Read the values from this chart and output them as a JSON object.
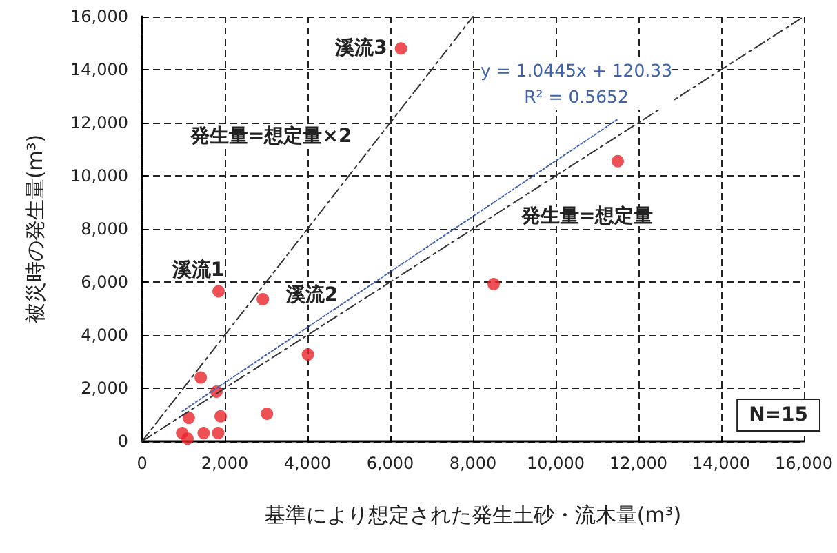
{
  "chart_data": {
    "type": "scatter",
    "xlabel": "基準により想定された発生土砂・流木量(m³)",
    "ylabel": "被災時の発生量(m³)",
    "xlim": [
      0,
      16000
    ],
    "xticks": [
      {
        "value": 0,
        "label": "0"
      },
      {
        "value": 2000,
        "label": "2,000"
      },
      {
        "value": 4000,
        "label": "4,000"
      },
      {
        "value": 6000,
        "label": "6,000"
      },
      {
        "value": 8000,
        "label": "8,000"
      },
      {
        "value": 10000,
        "label": "10,000"
      },
      {
        "value": 12000,
        "label": "12,000"
      },
      {
        "value": 14000,
        "label": "14,000"
      },
      {
        "value": 16000,
        "label": "16,000"
      }
    ],
    "ylim": [
      0,
      16000
    ],
    "yticks": [
      {
        "value": 0,
        "label": "0"
      },
      {
        "value": 2000,
        "label": "2,000"
      },
      {
        "value": 4000,
        "label": "4,000"
      },
      {
        "value": 6000,
        "label": "6,000"
      },
      {
        "value": 8000,
        "label": "8,000"
      },
      {
        "value": 10000,
        "label": "10,000"
      },
      {
        "value": 12000,
        "label": "12,000"
      },
      {
        "value": 14000,
        "label": "14,000"
      },
      {
        "value": 16000,
        "label": "16,000"
      }
    ],
    "grid": true,
    "legend": false,
    "series": [
      {
        "color": "#e8262b",
        "marker": "circle",
        "x": [
          1850,
          2920,
          1420,
          1800,
          4010,
          1130,
          1900,
          3020,
          970,
          1100,
          1490,
          1840,
          6260,
          11500,
          8500
        ],
        "values": [
          5650,
          5350,
          2400,
          1870,
          3270,
          880,
          940,
          1040,
          310,
          100,
          310,
          310,
          14800,
          10550,
          5920
        ]
      },
      {
        "type": "line",
        "color": "#333333",
        "marker": "none",
        "line_style": "dashed",
        "x": [
          0,
          16000
        ],
        "values": [
          0,
          16000
        ]
      },
      {
        "type": "line",
        "color": "#333333",
        "marker": "none",
        "line_style": "dashed",
        "x": [
          0,
          8000
        ],
        "values": [
          0,
          16000
        ]
      },
      {
        "type": "line",
        "name": "y = 1.0445x + 120.33\nR² = 0.5652",
        "color": "#3f62b0",
        "marker": "none",
        "line_style": "dotted",
        "x": [
          970,
          11500
        ],
        "values": [
          1130,
          12130
        ]
      }
    ],
    "annotations": [
      {
        "text": "溪流1",
        "x": 1360,
        "y": 6440
      },
      {
        "text": "溪流2",
        "x": 4110,
        "y": 5510
      },
      {
        "text": "溪流3",
        "x": 5300,
        "y": 14800
      },
      "発生量=想定量×2",
      "発生量=想定量",
      "N=15"
    ]
  }
}
